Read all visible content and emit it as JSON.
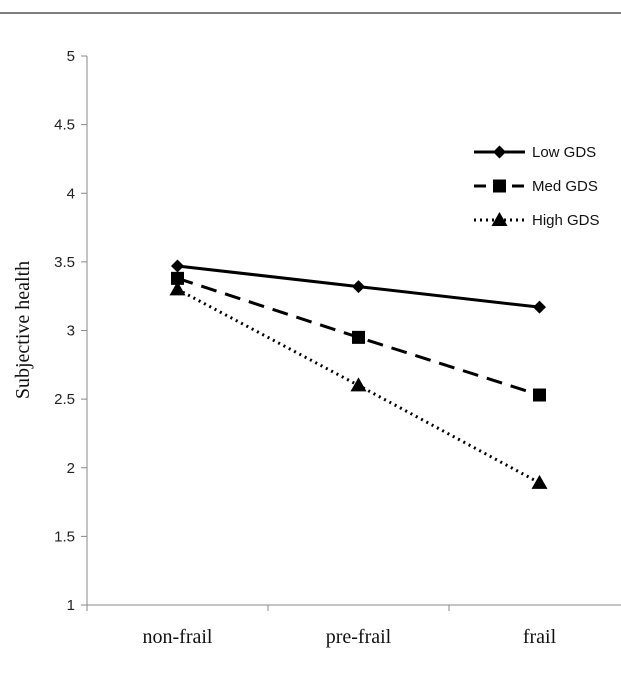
{
  "chart_data": {
    "type": "line",
    "categories": [
      "non-frail",
      "pre-frail",
      "frail"
    ],
    "xlabel": "",
    "ylabel": "Subjective health",
    "ylim": [
      1,
      5
    ],
    "yticks": [
      "1",
      "1.5",
      "2",
      "2.5",
      "3",
      "3.5",
      "4",
      "4.5",
      "5"
    ],
    "grid": false,
    "legend_position": "top-right",
    "series": [
      {
        "name": "Low GDS",
        "values": [
          3.47,
          3.32,
          3.17
        ],
        "marker": "diamond",
        "line": "solid",
        "color": "#000000"
      },
      {
        "name": "Med GDS",
        "values": [
          3.38,
          2.95,
          2.53
        ],
        "marker": "square",
        "line": "dashed",
        "color": "#000000"
      },
      {
        "name": "High GDS",
        "values": [
          3.3,
          2.6,
          1.89
        ],
        "marker": "triangle",
        "line": "dotted",
        "color": "#000000"
      }
    ]
  }
}
